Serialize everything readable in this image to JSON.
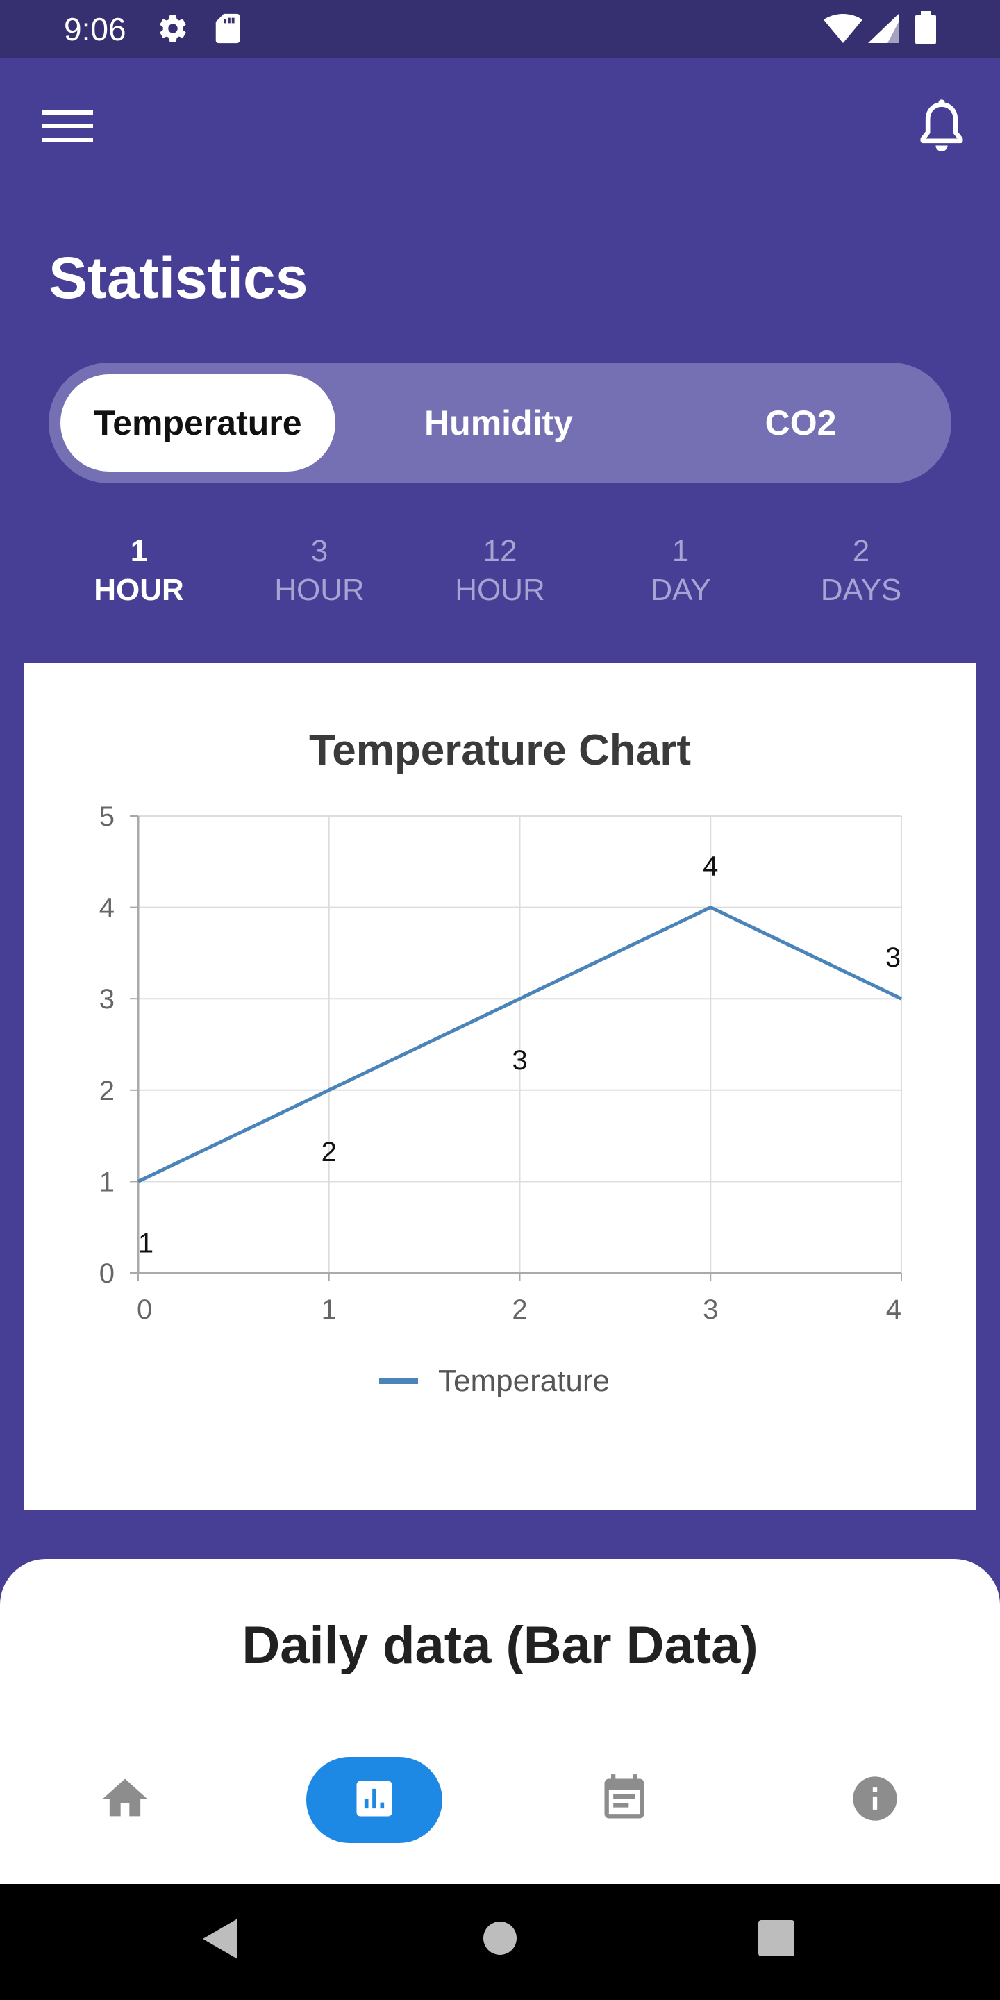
{
  "status_bar": {
    "time": "9:06",
    "icons": [
      "gear-icon",
      "sd-card-icon",
      "wifi-icon",
      "signal-icon",
      "battery-icon"
    ]
  },
  "header": {
    "menu_icon": "hamburger-menu-icon",
    "notification_icon": "bell-icon",
    "title": "Statistics"
  },
  "metric_tabs": [
    {
      "label": "Temperature",
      "active": true
    },
    {
      "label": "Humidity",
      "active": false
    },
    {
      "label": "CO2",
      "active": false
    }
  ],
  "time_ranges": [
    {
      "value": "1",
      "unit": "HOUR",
      "active": true
    },
    {
      "value": "3",
      "unit": "HOUR",
      "active": false
    },
    {
      "value": "12",
      "unit": "HOUR",
      "active": false
    },
    {
      "value": "1",
      "unit": "DAY",
      "active": false
    },
    {
      "value": "2",
      "unit": "DAYS",
      "active": false
    }
  ],
  "chart_data": {
    "type": "line",
    "title": "Temperature Chart",
    "x": [
      0,
      1,
      2,
      3,
      4
    ],
    "series": [
      {
        "name": "Temperature",
        "values": [
          1,
          2,
          3,
          4,
          3
        ],
        "color": "#4a84b9"
      }
    ],
    "data_labels": [
      "1",
      "2",
      "3",
      "4",
      "3"
    ],
    "x_ticks": [
      "0",
      "1",
      "2",
      "3",
      "4"
    ],
    "y_ticks": [
      "0",
      "1",
      "2",
      "3",
      "4",
      "5"
    ],
    "xlim": [
      0,
      4
    ],
    "ylim": [
      0,
      5
    ],
    "grid": true,
    "legend": "bottom-center"
  },
  "bottom_sheet": {
    "title": "Daily data (Bar Data)"
  },
  "bottom_nav": [
    {
      "icon": "home-icon",
      "active": false
    },
    {
      "icon": "bar-chart-icon",
      "active": true
    },
    {
      "icon": "calendar-icon",
      "active": false
    },
    {
      "icon": "info-icon",
      "active": false
    }
  ],
  "colors": {
    "primary": "#473f95",
    "status_bar": "#373070",
    "accent": "#1e88e5",
    "line": "#4a84b9"
  }
}
